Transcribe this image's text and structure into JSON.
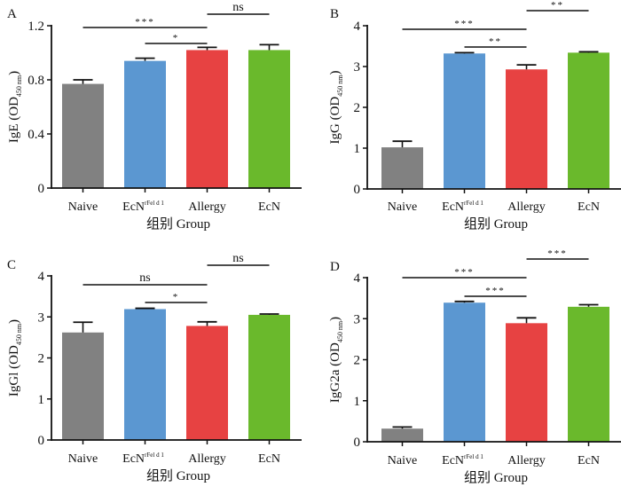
{
  "colors": {
    "Naive": "#818181",
    "EcNrFel": "#5b97d1",
    "Allergy": "#e74242",
    "EcN": "#6ab92c"
  },
  "chart_data": [
    {
      "type": "bar",
      "panel": "A",
      "categories": [
        "Naive",
        "EcN",
        "Allergy",
        "EcN"
      ],
      "category_superscripts": [
        "",
        "rFel d 1",
        "",
        ""
      ],
      "category_keys": [
        "Naive",
        "EcNrFel",
        "Allergy",
        "EcN"
      ],
      "values": [
        0.77,
        0.94,
        1.02,
        1.02
      ],
      "error_upper": [
        0.8,
        0.96,
        1.04,
        1.06
      ],
      "ylabel": "IgE (OD",
      "ylabel_sub": "450 nm",
      "ylabel_close": ")",
      "xlabel": "组别 Group",
      "ylim": [
        0,
        1.2
      ],
      "yticks": [
        0,
        0.4,
        0.8,
        1.2
      ],
      "ytick_labels": [
        "0",
        "0.4",
        "0.8",
        "1.2"
      ],
      "significance": [
        {
          "from": 0,
          "to": 2,
          "label": "***"
        },
        {
          "from": 1,
          "to": 2,
          "label": "*"
        },
        {
          "from": 2,
          "to": 3,
          "label": "ns"
        }
      ]
    },
    {
      "type": "bar",
      "panel": "B",
      "categories": [
        "Naive",
        "EcN",
        "Allergy",
        "EcN"
      ],
      "category_superscripts": [
        "",
        "rFel d 1",
        "",
        ""
      ],
      "category_keys": [
        "Naive",
        "EcNrFel",
        "Allergy",
        "EcN"
      ],
      "values": [
        1.02,
        3.32,
        2.93,
        3.34
      ],
      "error_upper": [
        1.17,
        3.34,
        3.04,
        3.36
      ],
      "ylabel": "IgG (OD",
      "ylabel_sub": "450 nm",
      "ylabel_close": ")",
      "xlabel": "组别 Group",
      "ylim": [
        0,
        4
      ],
      "yticks": [
        0,
        1,
        2,
        3,
        4
      ],
      "ytick_labels": [
        "0",
        "1",
        "2",
        "3",
        "4"
      ],
      "significance": [
        {
          "from": 0,
          "to": 2,
          "label": "***"
        },
        {
          "from": 1,
          "to": 2,
          "label": "**"
        },
        {
          "from": 2,
          "to": 3,
          "label": "**"
        }
      ]
    },
    {
      "type": "bar",
      "panel": "C",
      "categories": [
        "Naive",
        "EcN",
        "Allergy",
        "EcN"
      ],
      "category_superscripts": [
        "",
        "rFel d 1",
        "",
        ""
      ],
      "category_keys": [
        "Naive",
        "EcNrFel",
        "Allergy",
        "EcN"
      ],
      "values": [
        2.62,
        3.19,
        2.78,
        3.05
      ],
      "error_upper": [
        2.87,
        3.21,
        2.88,
        3.07
      ],
      "ylabel": "IgGl (OD",
      "ylabel_sub": "450 nm",
      "ylabel_close": ")",
      "xlabel": "组别 Group",
      "ylim": [
        0,
        4
      ],
      "yticks": [
        0,
        1,
        2,
        3,
        4
      ],
      "ytick_labels": [
        "0",
        "1",
        "2",
        "3",
        "4"
      ],
      "significance": [
        {
          "from": 0,
          "to": 2,
          "label": "ns"
        },
        {
          "from": 1,
          "to": 2,
          "label": "*"
        },
        {
          "from": 2,
          "to": 3,
          "label": "ns"
        }
      ]
    },
    {
      "type": "bar",
      "panel": "D",
      "categories": [
        "Naive",
        "EcN",
        "Allergy",
        "EcN"
      ],
      "category_superscripts": [
        "",
        "rFel d 1",
        "",
        ""
      ],
      "category_keys": [
        "Naive",
        "EcNrFel",
        "Allergy",
        "EcN"
      ],
      "values": [
        0.32,
        3.39,
        2.89,
        3.29
      ],
      "error_upper": [
        0.36,
        3.42,
        3.02,
        3.34
      ],
      "ylabel": "IgG2a (OD",
      "ylabel_sub": "450 nm",
      "ylabel_close": ")",
      "xlabel": "组别 Group",
      "ylim": [
        0,
        4
      ],
      "yticks": [
        0,
        1,
        2,
        3,
        4
      ],
      "ytick_labels": [
        "0",
        "1",
        "2",
        "3",
        "4"
      ],
      "significance": [
        {
          "from": 0,
          "to": 2,
          "label": "***"
        },
        {
          "from": 1,
          "to": 2,
          "label": "***"
        },
        {
          "from": 2,
          "to": 3,
          "label": "***"
        }
      ]
    }
  ]
}
